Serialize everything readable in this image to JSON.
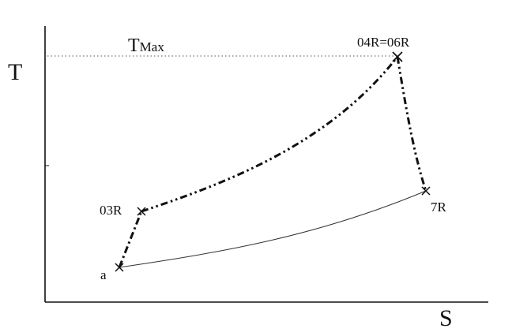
{
  "axes": {
    "x_label": "S",
    "y_label": "T"
  },
  "reference_line": {
    "label_main": "T",
    "label_sub": "Max",
    "style": "dotted"
  },
  "points": {
    "a": "a",
    "p03r": "03R",
    "p04r": "04R=06R",
    "p7r": "7R"
  },
  "processes": [
    {
      "from": "a",
      "to": "03R",
      "style": "dash-dot"
    },
    {
      "from": "03R",
      "to": "04R=06R",
      "style": "dash-dot-dot"
    },
    {
      "from": "04R=06R",
      "to": "7R",
      "style": "dash-dot-dot"
    },
    {
      "from": "7R",
      "to": "a",
      "style": "solid-thin"
    }
  ],
  "colors": {
    "line": "#111111",
    "reference": "#555555",
    "background": "#ffffff"
  }
}
